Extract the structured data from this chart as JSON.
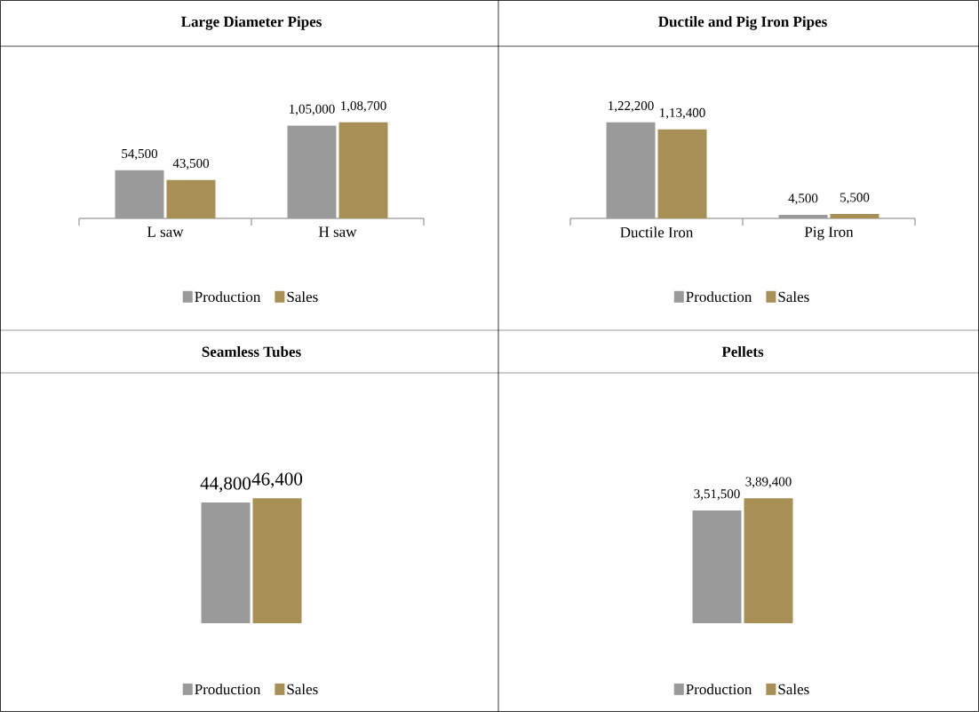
{
  "chart_data": [
    {
      "type": "bar",
      "title": "Large Diameter Pipes",
      "categories": [
        "L saw",
        "H saw"
      ],
      "legend": "bottom",
      "series": [
        {
          "name": "Production",
          "color": "#9a9a9a",
          "values": [
            54500,
            105000
          ],
          "value_labels": [
            "54,500",
            "1,05,000"
          ]
        },
        {
          "name": "Sales",
          "color": "#a88f55",
          "values": [
            43500,
            108700
          ],
          "value_labels": [
            "43,500",
            "1,08,700"
          ]
        }
      ]
    },
    {
      "type": "bar",
      "title": "Ductile and Pig Iron Pipes",
      "categories": [
        "Ductile Iron",
        "Pig Iron"
      ],
      "legend": "bottom",
      "series": [
        {
          "name": "Production",
          "color": "#9a9a9a",
          "values": [
            122200,
            4500
          ],
          "value_labels": [
            "1,22,200",
            "4,500"
          ]
        },
        {
          "name": "Sales",
          "color": "#a88f55",
          "values": [
            113400,
            5500
          ],
          "value_labels": [
            "1,13,400",
            "5,500"
          ]
        }
      ]
    },
    {
      "type": "bar",
      "title": "Seamless Tubes",
      "categories": [
        null
      ],
      "legend": "bottom",
      "series": [
        {
          "name": "Production",
          "color": "#9a9a9a",
          "values": [
            44800
          ],
          "value_labels": [
            "44,800"
          ]
        },
        {
          "name": "Sales",
          "color": "#a88f55",
          "values": [
            46400
          ],
          "value_labels": [
            "46,400"
          ]
        }
      ]
    },
    {
      "type": "bar",
      "title": "Pellets",
      "categories": [
        null
      ],
      "legend": "bottom",
      "series": [
        {
          "name": "Production",
          "color": "#9a9a9a",
          "values": [
            351500
          ],
          "value_labels": [
            "3,51,500"
          ]
        },
        {
          "name": "Sales",
          "color": "#a88f55",
          "values": [
            389400
          ],
          "value_labels": [
            "3,89,400"
          ]
        }
      ]
    }
  ]
}
